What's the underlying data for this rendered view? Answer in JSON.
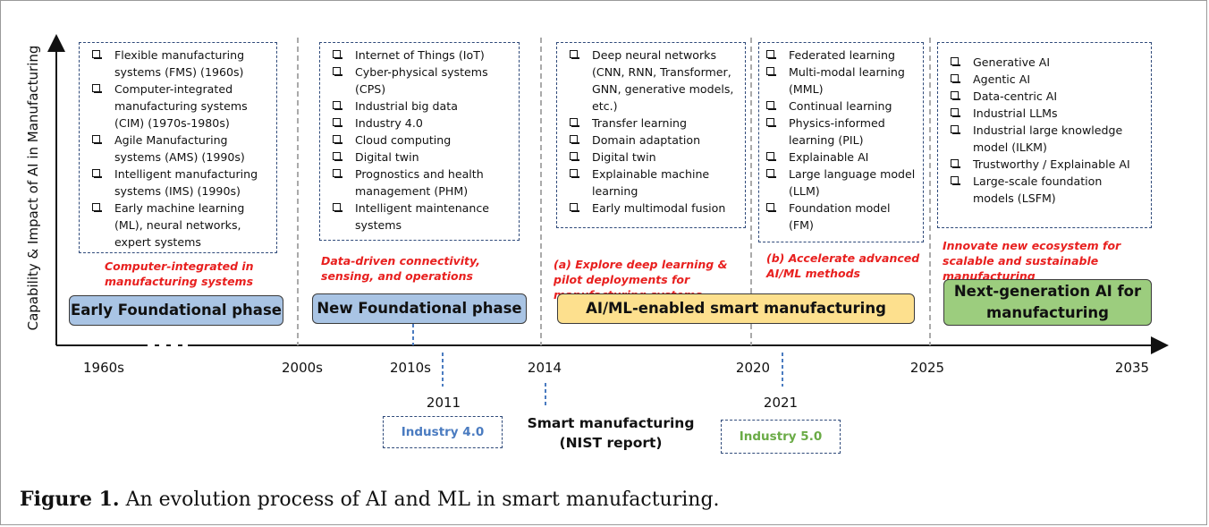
{
  "y_axis_label": "Capability & Impact of AI in Manufacturing",
  "boxes": [
    {
      "items": [
        "Flexible manufacturing systems (FMS) (1960s)",
        "Computer-integrated manufacturing systems (CIM) (1970s-1980s)",
        "Agile Manufacturing systems (AMS) (1990s)",
        "Intelligent manufacturing systems (IMS) (1990s)",
        "Early machine learning (ML), neural networks, expert systems"
      ]
    },
    {
      "items": [
        "Internet of Things (IoT)",
        "Cyber-physical systems (CPS)",
        "Industrial big data",
        "Industry 4.0",
        "Cloud computing",
        "Digital twin",
        "Prognostics and health management (PHM)",
        "Intelligent maintenance systems"
      ]
    },
    {
      "items": [
        "Deep neural networks (CNN, RNN, Transformer, GNN, generative models, etc.)",
        "Transfer learning",
        "Domain adaptation",
        "Digital twin",
        "Explainable machine learning",
        "Early multimodal fusion"
      ]
    },
    {
      "items": [
        "Federated learning",
        "Multi-modal learning (MML)",
        "Continual learning",
        "Physics-informed learning (PIL)",
        "Explainable AI",
        "Large language model (LLM)",
        "Foundation model (FM)"
      ]
    },
    {
      "items": [
        "Generative AI",
        "Agentic AI",
        "Data-centric AI",
        "Industrial LLMs",
        "Industrial large knowledge model (ILKM)",
        "Trustworthy / Explainable AI",
        "Large-scale foundation models (LSFM)"
      ]
    }
  ],
  "annotations": [
    "Computer-integrated in manufacturing systems",
    "Data-driven connectivity, sensing, and operations",
    "(a) Explore deep learning & pilot deployments for manufacturing systems",
    "(b) Accelerate advanced AI/ML methods",
    "Innovate new ecosystem for scalable and  sustainable manufacturing"
  ],
  "phases": [
    {
      "label": "Early Foundational phase",
      "color": "#a9c4e4"
    },
    {
      "label": "New Foundational phase",
      "color": "#a9c4e4"
    },
    {
      "label": "AI/ML-enabled smart manufacturing",
      "color": "#fde08e"
    },
    {
      "label": "Next-generation AI for manufacturing",
      "color": "#9ccd7e"
    }
  ],
  "ticks": [
    "1960s",
    "2000s",
    "2010s",
    "2014",
    "2020",
    "2025",
    "2035"
  ],
  "events": {
    "year_2011": "2011",
    "industry40": "Industry 4.0",
    "industry40_color": "#4a7bc0",
    "nist_line1": "Smart manufacturing",
    "nist_line2": "(NIST report)",
    "year_2021": "2021",
    "industry50": "Industry 5.0",
    "industry50_color": "#6aab46"
  },
  "caption": {
    "label": "Figure 1.",
    "text": " An evolution process of AI and ML in smart manufacturing."
  }
}
